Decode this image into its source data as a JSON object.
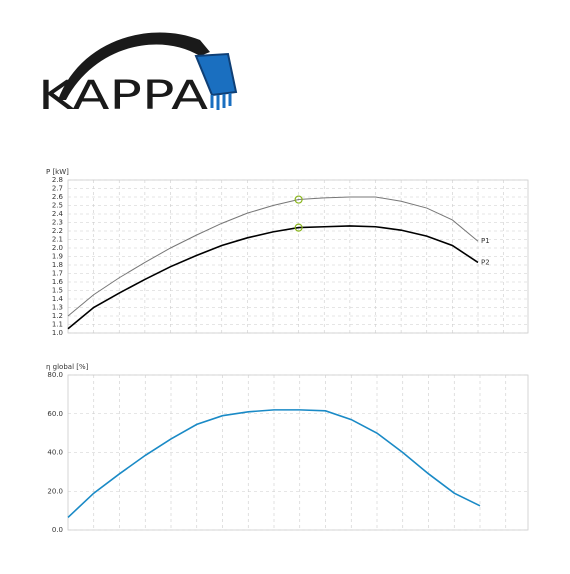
{
  "logo": {
    "text": "KAPPA"
  },
  "chart_data": [
    {
      "type": "line",
      "ylabel": "P [kW]",
      "categories": [
        null,
        null,
        null,
        null,
        null,
        null,
        null,
        null,
        null,
        null,
        null,
        null,
        null,
        null,
        null,
        null,
        null
      ],
      "series": [
        {
          "name": "P1",
          "color": "#777777",
          "values": [
            1.2,
            1.45,
            1.65,
            1.83,
            2.0,
            2.15,
            2.29,
            2.41,
            2.5,
            2.57,
            2.59,
            2.6,
            2.6,
            2.55,
            2.47,
            2.33,
            2.08
          ]
        },
        {
          "name": "P2",
          "color": "#000000",
          "values": [
            1.05,
            1.3,
            1.47,
            1.63,
            1.78,
            1.91,
            2.03,
            2.12,
            2.19,
            2.24,
            2.25,
            2.26,
            2.25,
            2.21,
            2.14,
            2.03,
            1.83
          ]
        }
      ],
      "highlight_index": 9,
      "highlight_color": "#8ab51e",
      "ylim": [
        1.0,
        2.8
      ],
      "yticks": [
        {
          "value": 1.0,
          "label": "1.0"
        },
        1.1,
        1.2,
        1.3,
        1.4,
        1.5,
        1.6,
        1.7,
        1.8,
        1.9,
        {
          "value": 2.0,
          "label": "2.0"
        },
        2.1,
        2.2,
        2.3,
        2.4,
        2.5,
        2.6,
        2.7,
        2.8
      ],
      "grid": true
    },
    {
      "type": "line",
      "ylabel": "η global [%]",
      "categories": [
        null,
        null,
        null,
        null,
        null,
        null,
        null,
        null,
        null,
        null,
        null,
        null,
        null,
        null,
        null,
        null,
        null
      ],
      "series": [
        {
          "name": null,
          "color": "#1a8ac6",
          "values": [
            6.5,
            19,
            29,
            38.5,
            47,
            54.5,
            59,
            61,
            62,
            62,
            61.5,
            57,
            50,
            40,
            29,
            19,
            12.5
          ]
        }
      ],
      "ylim": [
        0,
        80
      ],
      "yticks": [
        {
          "value": 0,
          "label": "0.0"
        },
        {
          "value": 20,
          "label": "20.0"
        },
        {
          "value": 40,
          "label": "40.0"
        },
        {
          "value": 60,
          "label": "60.0"
        },
        {
          "value": 80,
          "label": "80.0"
        }
      ],
      "grid": true
    }
  ]
}
